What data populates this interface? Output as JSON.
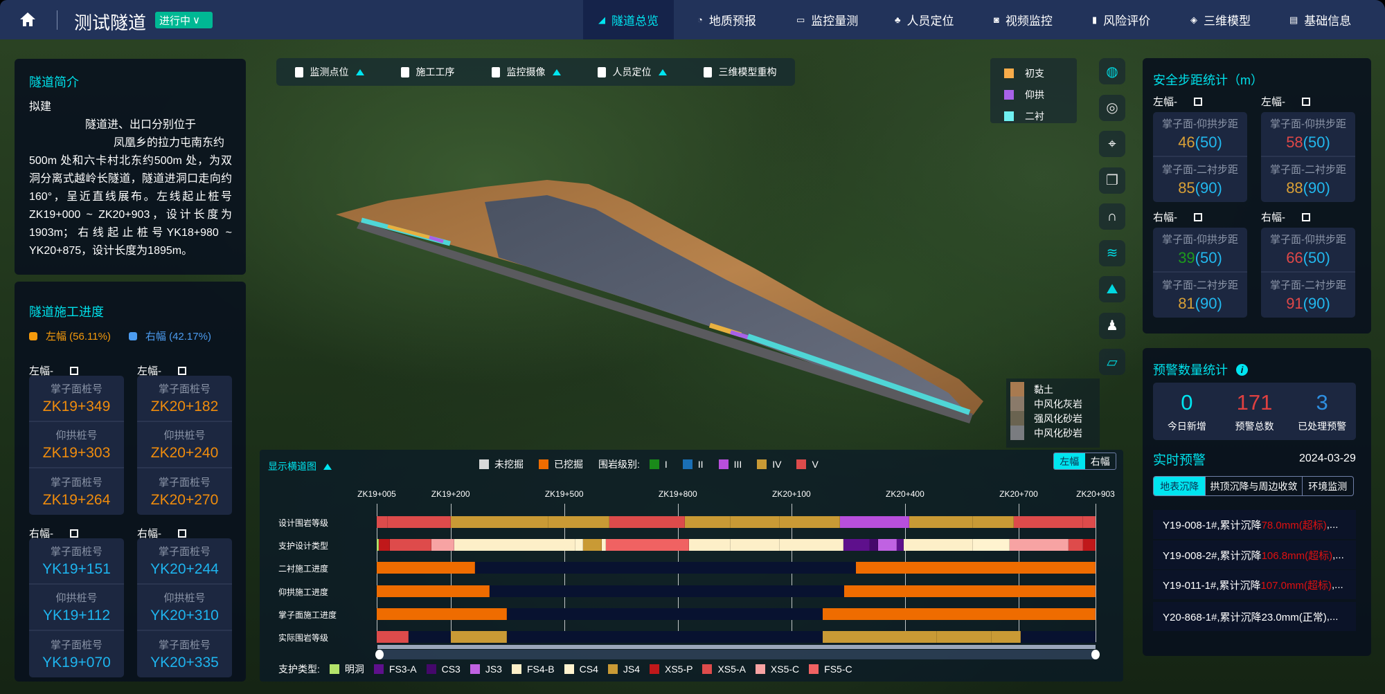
{
  "header": {
    "title": "测试隧道",
    "status": "进行中",
    "nav": [
      {
        "label": "隧道总览",
        "icon": "tunnel-icon",
        "active": true
      },
      {
        "label": "地质预报",
        "icon": "gauge-icon"
      },
      {
        "label": "监控量测",
        "icon": "monitor-icon"
      },
      {
        "label": "人员定位",
        "icon": "people-icon"
      },
      {
        "label": "视频监控",
        "icon": "camera-icon"
      },
      {
        "label": "风险评价",
        "icon": "bar-chart-icon"
      },
      {
        "label": "三维模型",
        "icon": "cube-icon"
      },
      {
        "label": "基础信息",
        "icon": "document-icon"
      }
    ]
  },
  "intro": {
    "title": "隧道简介",
    "line1": "拟建",
    "line2": "隧道进、出口分别位于",
    "line3": "凤凰乡的拉力屯南东约",
    "body": "500m 处和六卡村北东约500m 处，为双洞分离式越岭长隧道，隧道进洞口走向约160°，呈近直线展布。左线起止桩号ZK19+000 ~ ZK20+903，设计长度为1903m；右线起止桩号YK18+980 ~ YK20+875，设计长度为1895m。"
  },
  "progress": {
    "title": "隧道施工进度",
    "left_legend": "左幅 (56.11%)",
    "right_legend": "右幅 (42.17%)",
    "left_pct": 56.11,
    "right_pct": 42.17,
    "colors": {
      "left": "#f59a0c",
      "right": "#4c9cf0"
    },
    "groups": [
      {
        "label": "左幅-",
        "suffix": "口",
        "items": [
          {
            "k": "掌子面桩号",
            "v": "ZK19+349"
          },
          {
            "k": "仰拱桩号",
            "v": "ZK19+303"
          },
          {
            "k": "掌子面桩号",
            "v": "ZK19+264"
          }
        ]
      },
      {
        "label": "左幅-",
        "suffix": "口",
        "items": [
          {
            "k": "掌子面桩号",
            "v": "ZK20+182"
          },
          {
            "k": "仰拱桩号",
            "v": "ZK20+240"
          },
          {
            "k": "掌子面桩号",
            "v": "ZK20+270"
          }
        ]
      },
      {
        "label": "右幅-",
        "suffix": "口",
        "items": [
          {
            "k": "掌子面桩号",
            "v": "YK19+151"
          },
          {
            "k": "仰拱桩号",
            "v": "YK19+112"
          },
          {
            "k": "掌子面桩号",
            "v": "YK19+070"
          }
        ]
      },
      {
        "label": "右幅-",
        "suffix": "口",
        "items": [
          {
            "k": "掌子面桩号",
            "v": "YK20+244"
          },
          {
            "k": "仰拱桩号",
            "v": "YK20+310"
          },
          {
            "k": "掌子面桩号",
            "v": "YK20+335"
          }
        ]
      }
    ]
  },
  "toolbar": [
    {
      "label": "监测点位",
      "arrow": true
    },
    {
      "label": "施工工序",
      "arrow": false
    },
    {
      "label": "监控摄像",
      "arrow": true
    },
    {
      "label": "人员定位",
      "arrow": true
    },
    {
      "label": "三维模型重构",
      "arrow": false
    }
  ],
  "layer_legend": [
    {
      "label": "初支",
      "color": "#f8ac4a"
    },
    {
      "label": "仰拱",
      "color": "#a862e8"
    },
    {
      "label": "二衬",
      "color": "#6ff0f0"
    }
  ],
  "geology_legend": [
    {
      "label": "黏土",
      "color": "#a87a50"
    },
    {
      "label": "中风化灰岩",
      "color": "#8a7a6a"
    },
    {
      "label": "强风化砂岩",
      "color": "#6a6350"
    },
    {
      "label": "中风化砂岩",
      "color": "#7a7c80"
    }
  ],
  "side_tools": [
    "globe-icon",
    "sphere-icon",
    "location-pin-icon",
    "layers-icon",
    "tunnel-section-icon",
    "strata-icon",
    "terrain-icon",
    "surveyor-icon",
    "ruler-icon"
  ],
  "safety": {
    "title": "安全步距统计（m）",
    "groups": [
      {
        "label": "左幅-",
        "suffix": "口",
        "items": [
          {
            "k": "掌子面-仰拱步距",
            "v": "46",
            "limit": "(50)",
            "color": "#d9a036"
          },
          {
            "k": "掌子面-二衬步距",
            "v": "85",
            "limit": "(90)",
            "color": "#d9a036"
          }
        ]
      },
      {
        "label": "左幅-",
        "suffix": "口",
        "items": [
          {
            "k": "掌子面-仰拱步距",
            "v": "58",
            "limit": "(50)",
            "color": "#e04848"
          },
          {
            "k": "掌子面-二衬步距",
            "v": "88",
            "limit": "(90)",
            "color": "#d9a036"
          }
        ]
      },
      {
        "label": "右幅-",
        "suffix": "口",
        "items": [
          {
            "k": "掌子面-仰拱步距",
            "v": "39",
            "limit": "(50)",
            "color": "#1d9a1d"
          },
          {
            "k": "掌子面-二衬步距",
            "v": "81",
            "limit": "(90)",
            "color": "#d9a036"
          }
        ]
      },
      {
        "label": "右幅-",
        "suffix": "口",
        "items": [
          {
            "k": "掌子面-仰拱步距",
            "v": "66",
            "limit": "(50)",
            "color": "#e04848"
          },
          {
            "k": "掌子面-二衬步距",
            "v": "91",
            "limit": "(90)",
            "color": "#e04848"
          }
        ]
      }
    ]
  },
  "warnings": {
    "title": "预警数量统计",
    "stats": [
      {
        "value": "0",
        "label": "今日新增",
        "color": "#00e5f0"
      },
      {
        "value": "171",
        "label": "预警总数",
        "color": "#e04040"
      },
      {
        "value": "3",
        "label": "已处理预警",
        "color": "#2e8fe0"
      }
    ],
    "realtime_title": "实时预警",
    "date": "2024-03-29",
    "tabs": [
      "地表沉降",
      "拱顶沉降与周边收敛",
      "环境监测"
    ],
    "active_tab": 0,
    "items": [
      {
        "prefix": "Y19-008-1#,累计沉降",
        "value": "78.0mm(超标)",
        "suffix": ",...",
        "alert": true
      },
      {
        "prefix": "Y19-008-2#,累计沉降",
        "value": "106.8mm(超标)",
        "suffix": ",...",
        "alert": true
      },
      {
        "prefix": "Y19-011-1#,累计沉降",
        "value": "107.0mm(超标)",
        "suffix": ",...",
        "alert": true
      },
      {
        "prefix": "Y20-868-1#,累计沉降",
        "value": "23.0mm(正常)",
        "suffix": ",...",
        "alert": false
      }
    ]
  },
  "section_chart": {
    "toggle_label": "显示横道图",
    "status_legend": [
      {
        "label": "未挖掘",
        "color": "#d9d9d9"
      },
      {
        "label": "已挖掘",
        "color": "#ef6c00"
      }
    ],
    "grade_legend_title": "围岩级别:",
    "side_tabs": [
      "左幅",
      "右幅"
    ],
    "active_side": 0,
    "support_legend_title": "支护类型:"
  },
  "chart_data": {
    "type": "gantt",
    "x_range": [
      19005,
      20903
    ],
    "tick_labels": [
      "ZK19+005",
      "ZK19+200",
      "ZK19+500",
      "ZK19+800",
      "ZK20+100",
      "ZK20+400",
      "ZK20+700",
      "ZK20+903"
    ],
    "tick_values": [
      19005,
      19200,
      19500,
      19800,
      20100,
      20400,
      20700,
      20903
    ],
    "grades": [
      {
        "label": "I",
        "color": "#1a8a1a"
      },
      {
        "label": "II",
        "color": "#1a6fb5"
      },
      {
        "label": "III",
        "color": "#b84fdc"
      },
      {
        "label": "IV",
        "color": "#c99a35"
      },
      {
        "label": "V",
        "color": "#dd4b4b"
      }
    ],
    "support_types": [
      {
        "label": "明洞",
        "color": "#b4e36a"
      },
      {
        "label": "FS3-A",
        "color": "#5e108c"
      },
      {
        "label": "CS3",
        "color": "#45086b"
      },
      {
        "label": "JS3",
        "color": "#c062e2"
      },
      {
        "label": "FS4-B",
        "color": "#fdefc8"
      },
      {
        "label": "CS4",
        "color": "#fff3cf"
      },
      {
        "label": "JS4",
        "color": "#c99a35"
      },
      {
        "label": "XS5-P",
        "color": "#c0181a"
      },
      {
        "label": "XS5-A",
        "color": "#de4b4b"
      },
      {
        "label": "XS5-C",
        "color": "#f7a3a3"
      },
      {
        "label": "FS5-C",
        "color": "#f06262"
      }
    ],
    "rows": [
      {
        "label": "设计围岩等级",
        "kind": "grade",
        "segments": [
          [
            19005,
            19035,
            "V"
          ],
          [
            19035,
            19200,
            "V"
          ],
          [
            19200,
            19459,
            "IV"
          ],
          [
            19459,
            19619,
            "IV"
          ],
          [
            19619,
            19819,
            "V"
          ],
          [
            19819,
            19939,
            "IV"
          ],
          [
            19939,
            20070,
            "IV"
          ],
          [
            20070,
            20229,
            "IV"
          ],
          [
            20229,
            20411,
            "III"
          ],
          [
            20411,
            20580,
            "IV"
          ],
          [
            20580,
            20688,
            "IV"
          ],
          [
            20688,
            20870,
            "V"
          ],
          [
            20870,
            20903,
            "V"
          ]
        ]
      },
      {
        "label": "支护设计类型",
        "kind": "support",
        "segments": [
          [
            19005,
            19011,
            "明洞"
          ],
          [
            19011,
            19040,
            "XS5-P"
          ],
          [
            19040,
            19150,
            "XS5-A"
          ],
          [
            19150,
            19210,
            "XS5-C"
          ],
          [
            19210,
            19530,
            "FS4-B"
          ],
          [
            19530,
            19550,
            "CS4"
          ],
          [
            19550,
            19600,
            "JS4"
          ],
          [
            19600,
            19610,
            "CS4"
          ],
          [
            19610,
            19829,
            "FS5-C"
          ],
          [
            19829,
            19939,
            "FS4-B"
          ],
          [
            19939,
            20070,
            "FS4-B"
          ],
          [
            20070,
            20238,
            "FS4-B"
          ],
          [
            20238,
            20307,
            "FS3-A"
          ],
          [
            20307,
            20329,
            "CS3"
          ],
          [
            20329,
            20378,
            "JS3"
          ],
          [
            20378,
            20397,
            "FS3-A"
          ],
          [
            20397,
            20580,
            "FS4-B"
          ],
          [
            20580,
            20677,
            "CS4"
          ],
          [
            20677,
            20831,
            "XS5-C"
          ],
          [
            20831,
            20870,
            "XS5-A"
          ],
          [
            20870,
            20903,
            "XS5-P"
          ]
        ]
      },
      {
        "label": "二衬施工进度",
        "kind": "status",
        "segments": [
          [
            19005,
            19264,
            "已挖掘"
          ],
          [
            20270,
            20903,
            "已挖掘"
          ]
        ]
      },
      {
        "label": "仰拱施工进度",
        "kind": "status",
        "segments": [
          [
            19005,
            19303,
            "已挖掘"
          ],
          [
            20240,
            20903,
            "已挖掘"
          ]
        ]
      },
      {
        "label": "掌子面施工进度",
        "kind": "status",
        "segments": [
          [
            19005,
            19349,
            "已挖掘"
          ],
          [
            20182,
            20903,
            "已挖掘"
          ]
        ]
      },
      {
        "label": "实际围岩等级",
        "kind": "grade",
        "segments": [
          [
            19005,
            19090,
            "V"
          ],
          [
            19200,
            19349,
            "IV"
          ],
          [
            20182,
            20484,
            "IV"
          ],
          [
            20484,
            20628,
            "IV"
          ],
          [
            20628,
            20706,
            "IV"
          ]
        ]
      }
    ]
  }
}
